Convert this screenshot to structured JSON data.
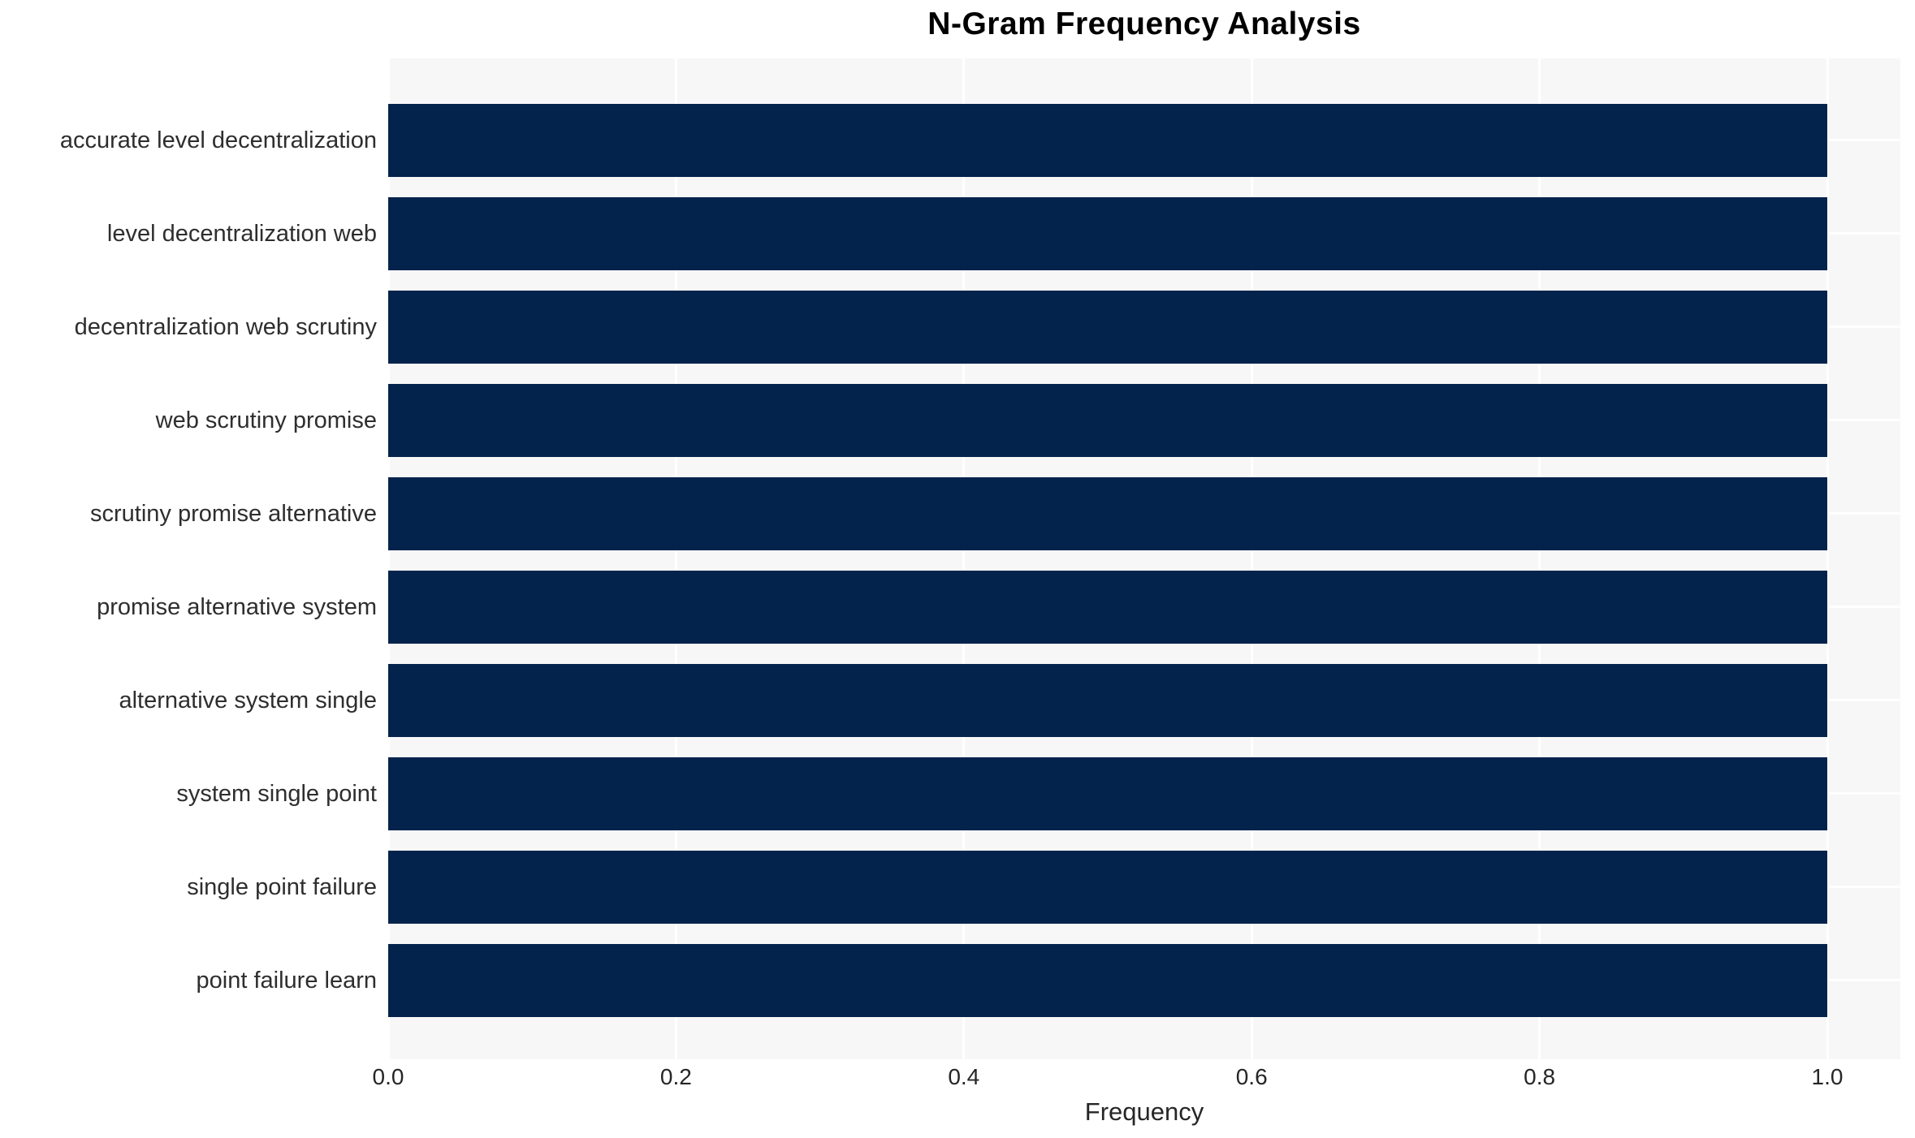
{
  "chart_data": {
    "type": "bar",
    "orientation": "horizontal",
    "title": "N-Gram Frequency Analysis",
    "xlabel": "Frequency",
    "ylabel": "",
    "categories": [
      "accurate level decentralization",
      "level decentralization web",
      "decentralization web scrutiny",
      "web scrutiny promise",
      "scrutiny promise alternative",
      "promise alternative system",
      "alternative system single",
      "system single point",
      "single point failure",
      "point failure learn"
    ],
    "values": [
      1.0,
      1.0,
      1.0,
      1.0,
      1.0,
      1.0,
      1.0,
      1.0,
      1.0,
      1.0
    ],
    "xlim": [
      0.0,
      1.05
    ],
    "xticks": [
      "0.0",
      "0.2",
      "0.4",
      "0.6",
      "0.8",
      "1.0"
    ],
    "grid": true,
    "legend": "none",
    "colors": {
      "bar": "#03234c",
      "plot_background": "#f7f7f8",
      "gridline": "#ffffff",
      "title_text": "#000000",
      "tick_text": "#262626"
    }
  }
}
